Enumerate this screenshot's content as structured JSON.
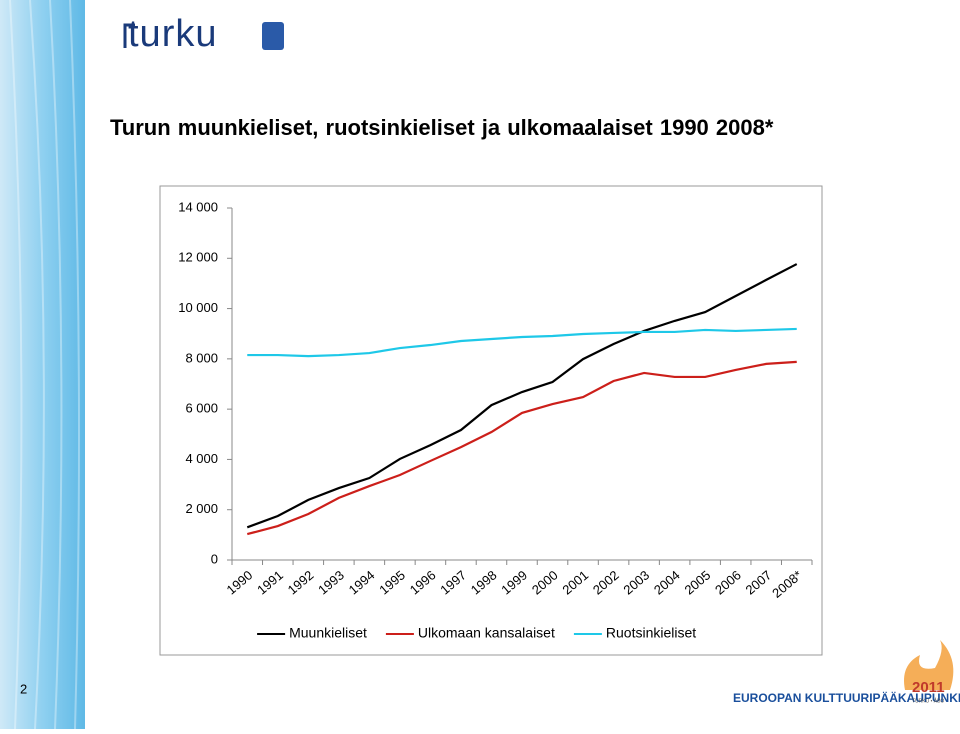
{
  "slide": {
    "logo": "turku",
    "page_number": "2",
    "footer": "EUROOPAN KULTTUURIPÄÄKAUPUNKI",
    "footer_year": "2011",
    "footer_city": "TURKU • ÅBO"
  },
  "chart_data": {
    "type": "line",
    "title": "Turun muunkieliset, ruotsinkieliset ja ulkomaalaiset 1990 2008*",
    "categories": [
      "1990",
      "1991",
      "1992",
      "1993",
      "1994",
      "1995",
      "1996",
      "1997",
      "1998",
      "1999",
      "2000",
      "2001",
      "2002",
      "2003",
      "2004",
      "2005",
      "2006",
      "2007",
      "2008*"
    ],
    "series": [
      {
        "name": "Muunkieliset",
        "color": "#000000",
        "values": [
          1300,
          1750,
          2390,
          2860,
          3260,
          4020,
          4570,
          5170,
          6160,
          6680,
          7080,
          7990,
          8590,
          9110,
          9510,
          9860,
          10500,
          11140,
          11770
        ]
      },
      {
        "name": "Ulkomaan kansalaiset",
        "color": "#cc1f1a",
        "values": [
          1030,
          1350,
          1830,
          2470,
          2940,
          3380,
          3940,
          4490,
          5090,
          5850,
          6200,
          6480,
          7120,
          7440,
          7280,
          7280,
          7560,
          7800,
          7880
        ]
      },
      {
        "name": "Ruotsinkieliset",
        "color": "#1ec8e8",
        "values": [
          8150,
          8150,
          8110,
          8150,
          8230,
          8430,
          8550,
          8710,
          8790,
          8870,
          8910,
          8990,
          9030,
          9070,
          9070,
          9150,
          9110,
          9150,
          9190
        ]
      }
    ],
    "ylim": [
      0,
      14000
    ],
    "yticks": [
      0,
      {
        "value": 2000,
        "label": "2 000"
      },
      {
        "value": 4000,
        "label": "4 000"
      },
      {
        "value": 6000,
        "label": "6 000"
      },
      {
        "value": 8000,
        "label": "8 000"
      },
      {
        "value": 10000,
        "label": "10 000"
      },
      {
        "value": 12000,
        "label": "12 000"
      },
      {
        "value": 14000,
        "label": "14 000"
      }
    ],
    "legend": "bottom",
    "grid": false
  }
}
